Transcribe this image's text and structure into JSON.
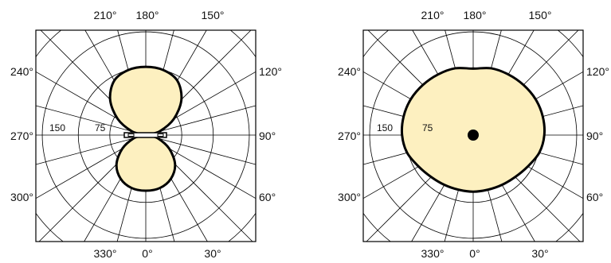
{
  "chart_data": [
    {
      "type": "polar",
      "angle_labels": {
        "top": [
          "210°",
          "180°",
          "150°"
        ],
        "bottom": [
          "330°",
          "0°",
          "30°"
        ],
        "left": [
          "240°",
          "270°",
          "300°"
        ],
        "right": [
          "120°",
          "90°",
          "60°"
        ]
      },
      "radial_labels": [
        "150",
        "75"
      ],
      "angles_deg": [
        0,
        15,
        30,
        45,
        60,
        75,
        90,
        105,
        120,
        135,
        150,
        165,
        180,
        195,
        210,
        225,
        240,
        255,
        270,
        285,
        300,
        315,
        330,
        345
      ],
      "values": [
        62,
        61,
        56,
        46,
        30,
        14,
        3,
        16,
        36,
        56,
        70,
        75,
        76,
        75,
        70,
        56,
        36,
        16,
        3,
        14,
        30,
        46,
        56,
        61
      ]
    },
    {
      "type": "polar",
      "angle_labels": {
        "top": [
          "210°",
          "180°",
          "150°"
        ],
        "bottom": [
          "330°",
          "0°",
          "30°"
        ],
        "left": [
          "240°",
          "270°",
          "300°"
        ],
        "right": [
          "120°",
          "90°",
          "60°"
        ]
      },
      "radial_labels": [
        "150",
        "75"
      ],
      "angles_deg": [
        0,
        15,
        30,
        45,
        60,
        75,
        90,
        105,
        120,
        135,
        150,
        165,
        180,
        195,
        210,
        225,
        240,
        255,
        270,
        285,
        300,
        315,
        330,
        345
      ],
      "values": [
        63,
        63,
        64,
        66,
        70,
        76,
        79,
        80,
        80,
        79,
        78,
        77,
        74,
        77,
        78,
        79,
        80,
        80,
        79,
        76,
        70,
        66,
        64,
        63
      ]
    }
  ]
}
